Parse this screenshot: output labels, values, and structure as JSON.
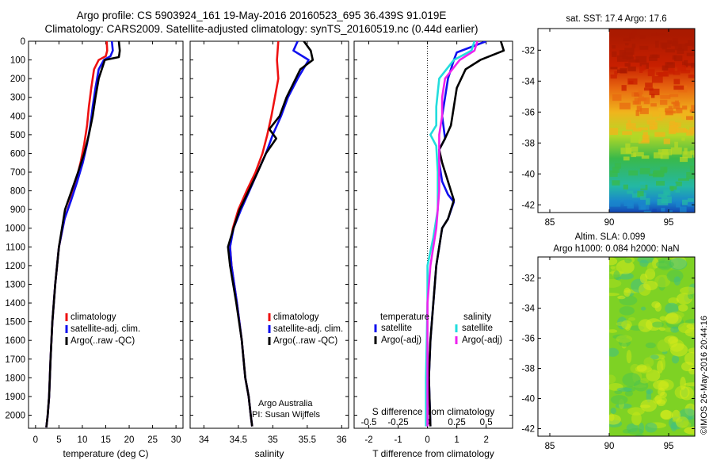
{
  "header": {
    "title_line1": "Argo profile: CS 5903924_161 19-May-2016 20160523_695 36.439S 91.019E",
    "title_line2": "Climatology: CARS2009. Satellite-adjusted climatology: synTS_20160519.nc (0.44d earlier)"
  },
  "credits": {
    "group": "Argo Australia",
    "pi": "PI: Susan Wijffels",
    "stamp": "©IMOS 26-May-2016 20:44:16"
  },
  "colors": {
    "climatology": "#ee1111",
    "satellite": "#1111ee",
    "argo": "#000000",
    "sal_satellite": "#22dddd",
    "sal_argo": "#ee22ee"
  },
  "chart_data": [
    {
      "type": "line",
      "name": "temperature-profile",
      "xlabel": "temperature (deg C)",
      "ylabel": "",
      "xlim": [
        -1.5,
        31.5
      ],
      "ylim": [
        2070,
        0
      ],
      "xticks": [
        0,
        5,
        10,
        15,
        20,
        25,
        30
      ],
      "yticks": [
        0,
        100,
        200,
        300,
        400,
        500,
        600,
        700,
        800,
        900,
        1000,
        1100,
        1200,
        1300,
        1400,
        1500,
        1600,
        1700,
        1800,
        1900,
        2000
      ],
      "legend": [
        "climatology",
        "satellite-adj. clim.",
        "Argo(..raw -QC)"
      ],
      "legend_position": "lower-middle",
      "series": [
        {
          "name": "climatology",
          "color": "red",
          "x": [
            15.2,
            15.3,
            15.0,
            13.5,
            12.5,
            11.9,
            11.4,
            11.0,
            10.4,
            9.6,
            8.6,
            7.5,
            6.2,
            5.0,
            4.2,
            3.6,
            3.2,
            2.9,
            2.6,
            2.3
          ],
          "y": [
            0,
            50,
            80,
            100,
            150,
            250,
            350,
            450,
            550,
            650,
            750,
            850,
            950,
            1100,
            1300,
            1500,
            1700,
            1900,
            2000,
            2065
          ]
        },
        {
          "name": "satellite-adj. clim.",
          "color": "blue",
          "x": [
            16.3,
            16.5,
            16.0,
            14.6,
            13.5,
            12.8,
            12.2,
            11.7,
            11.0,
            10.1,
            8.9,
            7.6,
            6.2,
            5.0,
            4.2,
            3.6,
            3.2,
            2.9,
            2.6,
            2.3
          ],
          "y": [
            0,
            50,
            80,
            100,
            150,
            250,
            350,
            450,
            550,
            650,
            750,
            850,
            950,
            1100,
            1300,
            1500,
            1700,
            1900,
            2000,
            2065
          ]
        },
        {
          "name": "Argo(..raw -QC)",
          "color": "black",
          "x": [
            17.8,
            18.0,
            17.9,
            17.8,
            14.8,
            13.5,
            12.8,
            12.2,
            11.4,
            10.4,
            9.1,
            7.7,
            6.3,
            5.0,
            4.2,
            3.6,
            3.2,
            2.9,
            2.6,
            2.3
          ],
          "y": [
            0,
            50,
            70,
            85,
            100,
            200,
            300,
            400,
            500,
            600,
            700,
            800,
            900,
            1100,
            1300,
            1500,
            1700,
            1900,
            2000,
            2065
          ]
        }
      ]
    },
    {
      "type": "line",
      "name": "salinity-profile",
      "xlabel": "salinity",
      "ylabel": "",
      "xlim": [
        33.8,
        36.1
      ],
      "ylim": [
        2070,
        0
      ],
      "xticks": [
        34,
        34.5,
        35,
        35.5,
        36
      ],
      "xtick_labels": [
        "34",
        "34.5",
        "35",
        "35.5",
        "36"
      ],
      "legend": [
        "climatology",
        "satellite-adj. clim.",
        "Argo(..raw -QC)"
      ],
      "legend_position": "lower-right",
      "series": [
        {
          "name": "climatology",
          "color": "red",
          "x": [
            35.08,
            35.06,
            35.08,
            35.03,
            34.98,
            34.92,
            34.85,
            34.75,
            34.62,
            34.5,
            34.42,
            34.38,
            34.4,
            34.48,
            34.55,
            34.6,
            34.65,
            34.68,
            34.7
          ],
          "y": [
            0,
            100,
            200,
            300,
            400,
            500,
            600,
            700,
            800,
            900,
            1000,
            1100,
            1200,
            1400,
            1600,
            1800,
            1900,
            2000,
            2060
          ]
        },
        {
          "name": "satellite-adj. clim.",
          "color": "blue",
          "x": [
            35.36,
            35.3,
            35.52,
            35.36,
            35.22,
            35.12,
            35.0,
            34.9,
            34.78,
            34.66,
            34.54,
            34.43,
            34.38,
            34.4,
            34.48,
            34.55,
            34.6,
            34.65,
            34.68,
            34.7
          ],
          "y": [
            0,
            50,
            100,
            200,
            300,
            400,
            500,
            600,
            700,
            800,
            900,
            1000,
            1100,
            1200,
            1400,
            1600,
            1800,
            1900,
            2000,
            2060
          ]
        },
        {
          "name": "Argo(..raw -QC)",
          "color": "black",
          "x": [
            35.45,
            35.55,
            35.58,
            35.4,
            35.2,
            35.1,
            34.95,
            35.05,
            34.9,
            34.78,
            34.65,
            34.52,
            34.43,
            34.35,
            34.38,
            34.47,
            34.55,
            34.6,
            34.65,
            34.68,
            34.7
          ],
          "y": [
            0,
            50,
            100,
            150,
            300,
            400,
            470,
            520,
            600,
            700,
            800,
            900,
            1000,
            1100,
            1200,
            1400,
            1600,
            1800,
            1900,
            2000,
            2060
          ]
        }
      ]
    },
    {
      "type": "line",
      "name": "difference-profile",
      "xlabel": "T difference from climatology",
      "xlabel_top": "S difference from climatology",
      "xlim": [
        -2.5,
        2.9
      ],
      "ylim": [
        2070,
        0
      ],
      "xticks": [
        -2,
        -1,
        0,
        1,
        2
      ],
      "xticks_salinity": [
        -0.5,
        -0.25,
        0,
        0.25,
        0.5
      ],
      "xticks_salinity_labels": [
        "-0.5",
        "-0.25",
        "0",
        "0.25",
        "0.5"
      ],
      "legend_titles": [
        "temperature",
        "salinity"
      ],
      "legend": [
        "satellite",
        "Argo(-adj)",
        "satellite",
        "Argo(-adj)"
      ],
      "legend_position": "lower-middle",
      "series": [
        {
          "name": "temperature satellite",
          "color": "blue",
          "x": [
            2.0,
            1.5,
            1.0,
            0.9,
            0.7,
            0.6,
            0.5,
            0.6,
            0.4,
            0.4,
            0.5,
            0.7,
            0.9,
            0.7,
            0.5,
            0.4,
            0.3,
            0.2,
            0.1,
            0.05,
            0.1
          ],
          "y": [
            0,
            30,
            60,
            100,
            200,
            300,
            400,
            520,
            580,
            650,
            750,
            820,
            860,
            950,
            1000,
            1100,
            1200,
            1400,
            1600,
            1800,
            2060
          ]
        },
        {
          "name": "temperature Argo(-adj)",
          "color": "black",
          "x": [
            2.5,
            2.6,
            1.8,
            1.3,
            1.0,
            0.9,
            0.8,
            0.6,
            0.4,
            0.5,
            0.7,
            0.8,
            0.9,
            0.7,
            0.5,
            0.4,
            0.3,
            0.2,
            0.1,
            0.05,
            0.1
          ],
          "y": [
            0,
            50,
            100,
            150,
            250,
            350,
            450,
            520,
            580,
            650,
            750,
            800,
            850,
            950,
            1000,
            1100,
            1200,
            1400,
            1600,
            1800,
            2060
          ]
        },
        {
          "name": "salinity satellite",
          "color": "cyan",
          "x": [
            1.6,
            1.5,
            0.9,
            0.4,
            0.3,
            0.3,
            0.1,
            0.3,
            0.35,
            0.35,
            0.2,
            0.0,
            0.0,
            -0.05,
            -0.05
          ],
          "y": [
            0,
            50,
            100,
            200,
            350,
            450,
            500,
            560,
            700,
            900,
            1050,
            1200,
            1400,
            1800,
            2060
          ]
        },
        {
          "name": "salinity Argo(-adj)",
          "color": "magenta",
          "x": [
            1.7,
            1.6,
            1.1,
            0.6,
            0.5,
            0.5,
            0.4,
            0.4,
            0.4,
            0.3,
            0.2,
            0.1,
            0.0,
            0.0
          ],
          "y": [
            0,
            50,
            100,
            200,
            300,
            400,
            500,
            600,
            800,
            1000,
            1100,
            1200,
            1400,
            2060
          ]
        }
      ]
    },
    {
      "type": "heatmap",
      "name": "sst-map",
      "title": "sat. SST: 17.4 Argo: 17.6",
      "xlim": [
        84,
        97.2
      ],
      "ylim": [
        -42.5,
        -30.6
      ],
      "xticks": [
        85,
        90,
        95
      ],
      "yticks": [
        -32,
        -34,
        -36,
        -38,
        -40,
        -42
      ],
      "data_x_range": [
        90,
        97.2
      ],
      "field_stops": [
        {
          "lat": -31,
          "color": "#aa1a00"
        },
        {
          "lat": -33,
          "color": "#c81f00"
        },
        {
          "lat": -34.5,
          "color": "#e86a10"
        },
        {
          "lat": -36,
          "color": "#f0b41c"
        },
        {
          "lat": -37.5,
          "color": "#b4d826"
        },
        {
          "lat": -39,
          "color": "#39b94a"
        },
        {
          "lat": -40.8,
          "color": "#24b8a4"
        },
        {
          "lat": -41.8,
          "color": "#1a86cc"
        },
        {
          "lat": -42.5,
          "color": "#1346b4"
        }
      ]
    },
    {
      "type": "heatmap",
      "name": "sla-map",
      "title_line1": "Altim. SLA: 0.099",
      "title_line2": "Argo h1000: 0.084 h2000: NaN",
      "xlim": [
        84,
        97.2
      ],
      "ylim": [
        -42.5,
        -30.6
      ],
      "xticks": [
        85,
        90,
        95
      ],
      "yticks": [
        -32,
        -34,
        -36,
        -38,
        -40,
        -42
      ],
      "data_x_range": [
        90,
        97.2
      ],
      "base_color": "#7ed224",
      "blob_colors": [
        "#c4e618",
        "#d6ea1c",
        "#4cc44c",
        "#3ec086",
        "#a8dc1e"
      ]
    }
  ]
}
